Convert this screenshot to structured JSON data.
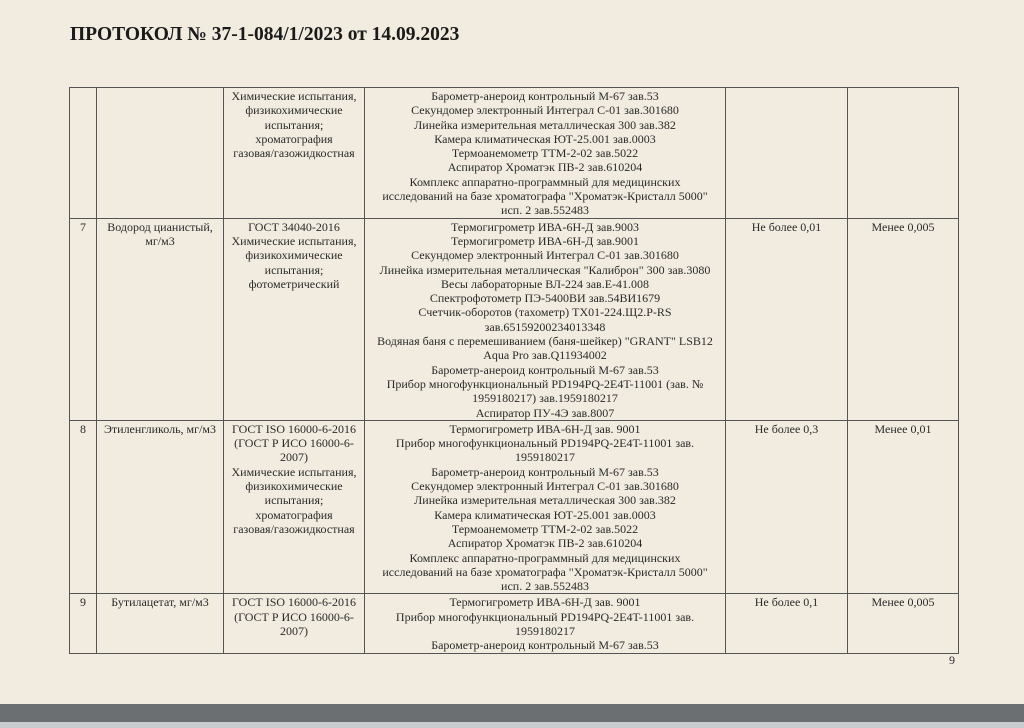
{
  "header": {
    "title": "ПРОТОКОЛ № 37-1-084/1/2023 от 14.09.2023"
  },
  "rows": [
    {
      "num": "",
      "name": "",
      "method": [
        "Химические испытания,",
        "физикохимические",
        "испытания;",
        "хроматография",
        "газовая/газожидкостная"
      ],
      "equipment": [
        "Барометр-анероид контрольный М-67 зав.53",
        "Секундомер электронный Интеграл С-01 зав.301680",
        "Линейка измерительная металлическая 300 зав.382",
        "Камера климатическая ЮТ-25.001 зав.0003",
        "Термоанемометр ТТМ-2-02 зав.5022",
        "Аспиратор Хроматэк ПВ-2  зав.610204",
        "Комплекс аппаратно-программный для медицинских",
        "исследований на базе хроматографа \"Хроматэк-Кристалл 5000\"",
        "исп. 2 зав.552483"
      ],
      "norm": "",
      "result": ""
    },
    {
      "num": "7",
      "name": [
        "Водород цианистый,",
        "мг/м3"
      ],
      "method": [
        "ГОСТ 34040-2016",
        "Химические испытания,",
        "физикохимические",
        "испытания;",
        "фотометрический"
      ],
      "equipment": [
        "Термогигрометр ИВА-6Н-Д зав.9003",
        "Термогигрометр ИВА-6Н-Д зав.9001",
        "Секундомер электронный Интеграл С-01 зав.301680",
        "Линейка измерительная металлическая \"Калиброн\" 300 зав.3080",
        "Весы лабораторные ВЛ-224 зав.Е-41.008",
        "Спектрофотометр ПЭ-5400ВИ зав.54ВИ1679",
        "Счетчик-оборотов (тахометр) ТХ01-224.Щ2.Р-RS",
        "зав.65159200234013348",
        "Водяная баня с перемешиванием (баня-шейкер) \"GRANT\" LSB12",
        "Aqua Pro зав.Q11934002",
        "Барометр-анероид контрольный М-67 зав.53",
        "Прибор многофункциональный PD194PQ-2E4T-11001 (зав. №",
        "1959180217) зав.1959180217",
        "Аспиратор ПУ-4Э зав.8007"
      ],
      "norm": "Не более 0,01",
      "result": "Менее 0,005"
    },
    {
      "num": "8",
      "name": [
        "Этиленгликоль, мг/м3"
      ],
      "method": [
        "ГОСТ ISO 16000-6-2016",
        "(ГОСТ Р ИСО 16000-6-",
        "2007)",
        "Химические испытания,",
        "физикохимические",
        "испытания;",
        "хроматография",
        "газовая/газожидкостная"
      ],
      "equipment": [
        "Термогигрометр ИВА-6Н-Д зав. 9001",
        "Прибор многофункциональный PD194PQ-2E4T-11001 зав.",
        "1959180217",
        "Барометр-анероид контрольный М-67 зав.53",
        "Секундомер электронный Интеграл С-01 зав.301680",
        "Линейка измерительная металлическая 300 зав.382",
        "Камера климатическая ЮТ-25.001 зав.0003",
        "Термоанемометр ТТМ-2-02 зав.5022",
        "Аспиратор Хроматэк ПВ-2  зав.610204",
        "Комплекс аппаратно-программный для медицинских",
        "исследований на базе хроматографа \"Хроматэк-Кристалл 5000\"",
        "исп. 2 зав.552483"
      ],
      "norm": "Не более 0,3",
      "result": "Менее 0,01"
    },
    {
      "num": "9",
      "name": [
        "Бутилацетат, мг/м3"
      ],
      "method": [
        "ГОСТ ISO 16000-6-2016",
        "(ГОСТ Р ИСО 16000-6-",
        "2007)"
      ],
      "equipment": [
        "Термогигрометр ИВА-6Н-Д зав. 9001",
        "Прибор многофункциональный PD194PQ-2E4T-11001 зав.",
        "1959180217",
        "Барометр-анероид контрольный М-67 зав.53"
      ],
      "norm": "Не более 0,1",
      "result": "Менее 0,005"
    }
  ],
  "footer": {
    "page_number": "9"
  }
}
